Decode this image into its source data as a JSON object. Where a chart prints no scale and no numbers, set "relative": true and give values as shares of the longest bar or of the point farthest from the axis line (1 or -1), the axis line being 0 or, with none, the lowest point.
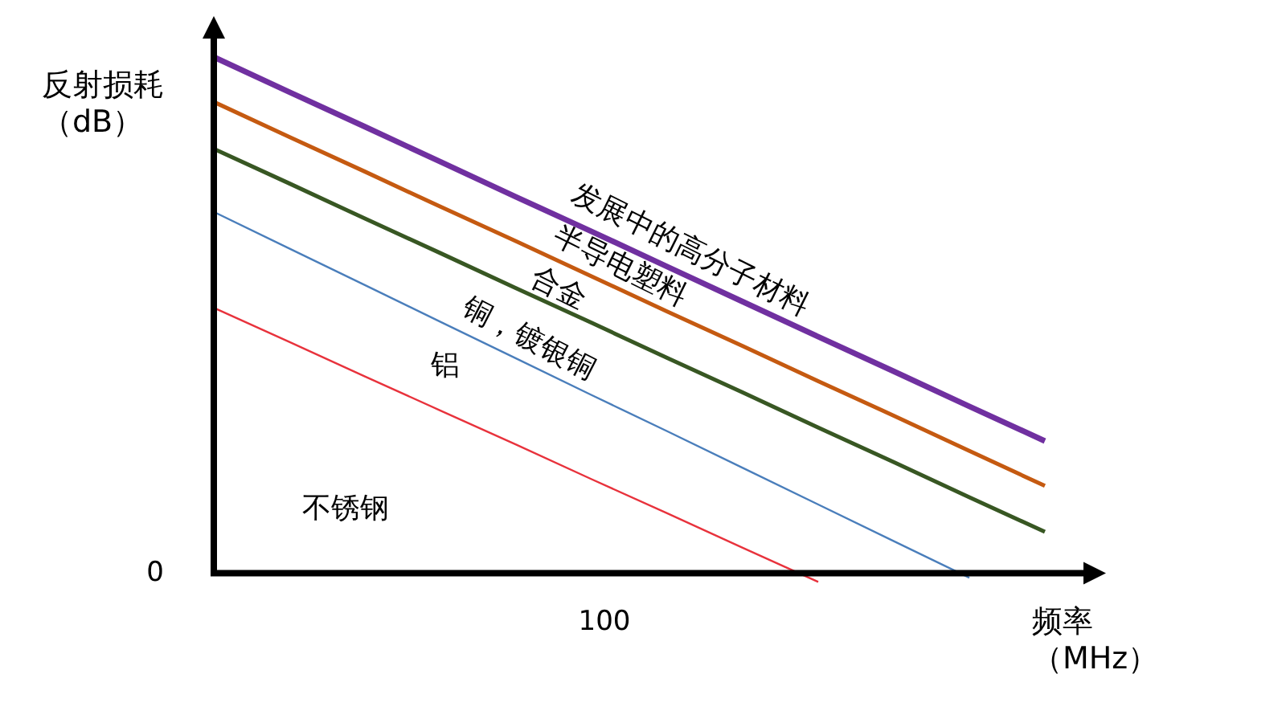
{
  "chart_data": {
    "type": "line",
    "relative": true,
    "xlabel": "频率（MHz）",
    "ylabel": "反射损耗（dB）",
    "categories": [
      null,
      null,
      null,
      null,
      null,
      null,
      null,
      null,
      null,
      null,
      null,
      null
    ],
    "series": [
      {
        "name": "发展中的高分子材料",
        "color": "#7030a0",
        "values": [
          1,
          0.932,
          0.865,
          0.797,
          0.729,
          0.662,
          0.594,
          0.526,
          0.458,
          0.391,
          0.323,
          0.256
        ]
      },
      {
        "name": "半导电塑料",
        "color": "#c55a11",
        "values": [
          0.913,
          0.845,
          0.778,
          0.71,
          0.643,
          0.575,
          0.507,
          0.44,
          0.372,
          0.305,
          0.237,
          0.169
        ]
      },
      {
        "name": "合金",
        "color": "#385723",
        "values": [
          0.822,
          0.755,
          0.687,
          0.62,
          0.552,
          0.485,
          0.417,
          0.35,
          0.282,
          0.215,
          0.147,
          0.08
        ]
      },
      {
        "name": "铜，镀银铜",
        "color": "#4a7ebb",
        "values": [
          0.7,
          0.629,
          0.558,
          0.487,
          0.416,
          0.345,
          0.275,
          0.204,
          0.133,
          0.062,
          -0.009,
          null
        ]
      },
      {
        "name": "铝",
        "color": "#e8323c",
        "values": [
          0.514,
          0.448,
          0.381,
          0.315,
          0.249,
          0.182,
          0.116,
          0.049,
          -0.017,
          null,
          null,
          null
        ]
      }
    ],
    "annotations": [
      "0",
      "不锈钢",
      "100"
    ]
  }
}
